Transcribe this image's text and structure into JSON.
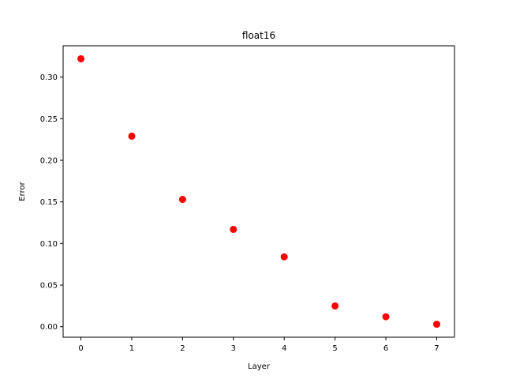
{
  "chart_data": {
    "type": "scatter",
    "title": "float16",
    "xlabel": "Layer",
    "ylabel": "Error",
    "x": [
      0,
      1,
      2,
      3,
      4,
      5,
      6,
      7
    ],
    "y": [
      0.322,
      0.229,
      0.153,
      0.117,
      0.084,
      0.025,
      0.012,
      0.003
    ],
    "xlim": [
      -0.35,
      7.35
    ],
    "ylim": [
      -0.0126,
      0.3376
    ],
    "xticks": [
      0,
      1,
      2,
      3,
      4,
      5,
      6,
      7
    ],
    "xtick_labels": [
      "0",
      "1",
      "2",
      "3",
      "4",
      "5",
      "6",
      "7"
    ],
    "yticks": [
      0.0,
      0.05,
      0.1,
      0.15,
      0.2,
      0.25,
      0.3
    ],
    "ytick_labels": [
      "0.00",
      "0.05",
      "0.10",
      "0.15",
      "0.20",
      "0.25",
      "0.30"
    ],
    "marker_color": "#ff0000",
    "grid": false,
    "legend": "none"
  }
}
